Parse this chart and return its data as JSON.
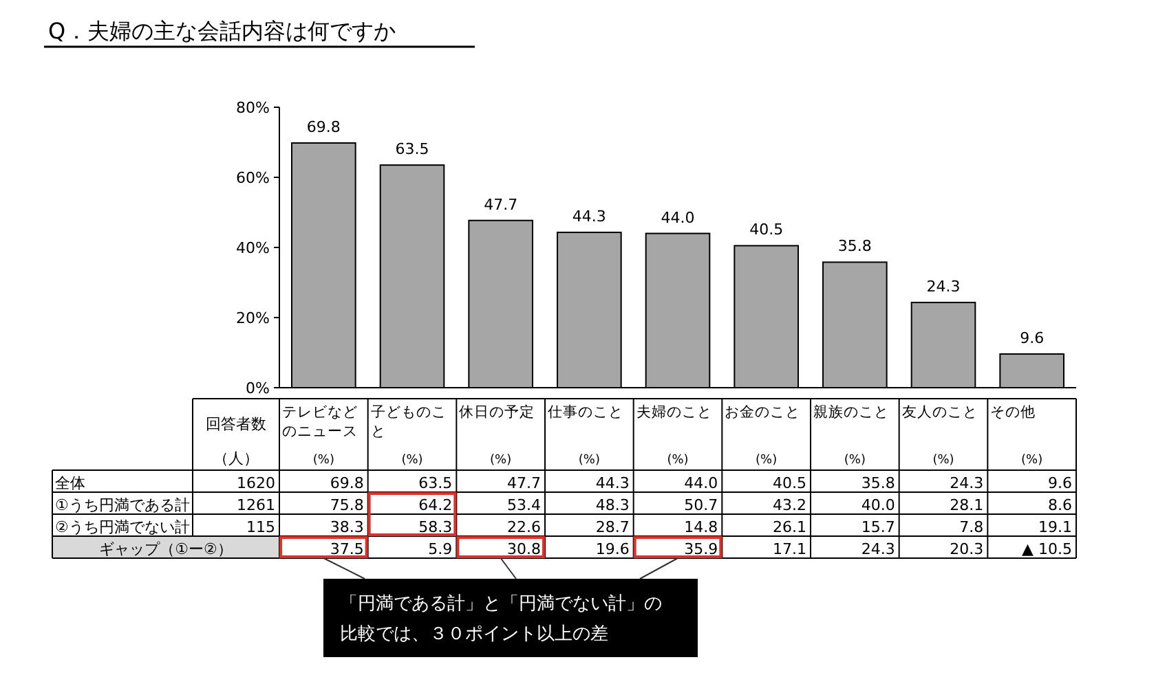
{
  "chart_data": {
    "type": "bar",
    "title": "Q．夫婦の主な会話内容は何ですか",
    "categories": [
      "テレビなどのニュース",
      "子どものこと",
      "休日の予定",
      "仕事のこと",
      "夫婦のこと",
      "お金のこと",
      "親族のこと",
      "友人のこと",
      "その他"
    ],
    "values": [
      69.8,
      63.5,
      47.7,
      44.3,
      44.0,
      40.5,
      35.8,
      24.3,
      9.6
    ],
    "color": "#a6a6a6",
    "ylim": [
      0,
      80
    ],
    "yticks": [
      {
        "value": 0,
        "label": "0%"
      },
      {
        "value": 20,
        "label": "20%"
      },
      {
        "value": 40,
        "label": "40%"
      },
      {
        "value": 60,
        "label": "60%"
      },
      {
        "value": 80,
        "label": "80%"
      }
    ],
    "value_labels": [
      "69.8",
      "63.5",
      "47.7",
      "44.3",
      "44.0",
      "40.5",
      "35.8",
      "24.3",
      "9.6"
    ],
    "grid": false,
    "annotations": [
      "回答者数",
      "（人）",
      "(%)",
      "全体",
      "1620",
      "69.8",
      "63.5",
      "47.7",
      "44.3",
      "44.0",
      "40.5",
      "35.8",
      "24.3",
      "9.6",
      "①うち円満である計",
      "1261",
      "75.8",
      "64.2",
      "53.4",
      "48.3",
      "50.7",
      "43.2",
      "40.0",
      "28.1",
      "8.6",
      "②うち円満でない計",
      "115",
      "38.3",
      "58.3",
      "22.6",
      "28.7",
      "14.8",
      "26.1",
      "15.7",
      "7.8",
      "19.1",
      "ギャップ（①ー②）",
      "37.5",
      "5.9",
      "30.8",
      "19.6",
      "35.9",
      "17.1",
      "24.3",
      "20.3",
      "▲ 10.5",
      "「円満である計」と「円満でない計」の",
      "比較では、３０ポイント以上の差"
    ]
  }
}
